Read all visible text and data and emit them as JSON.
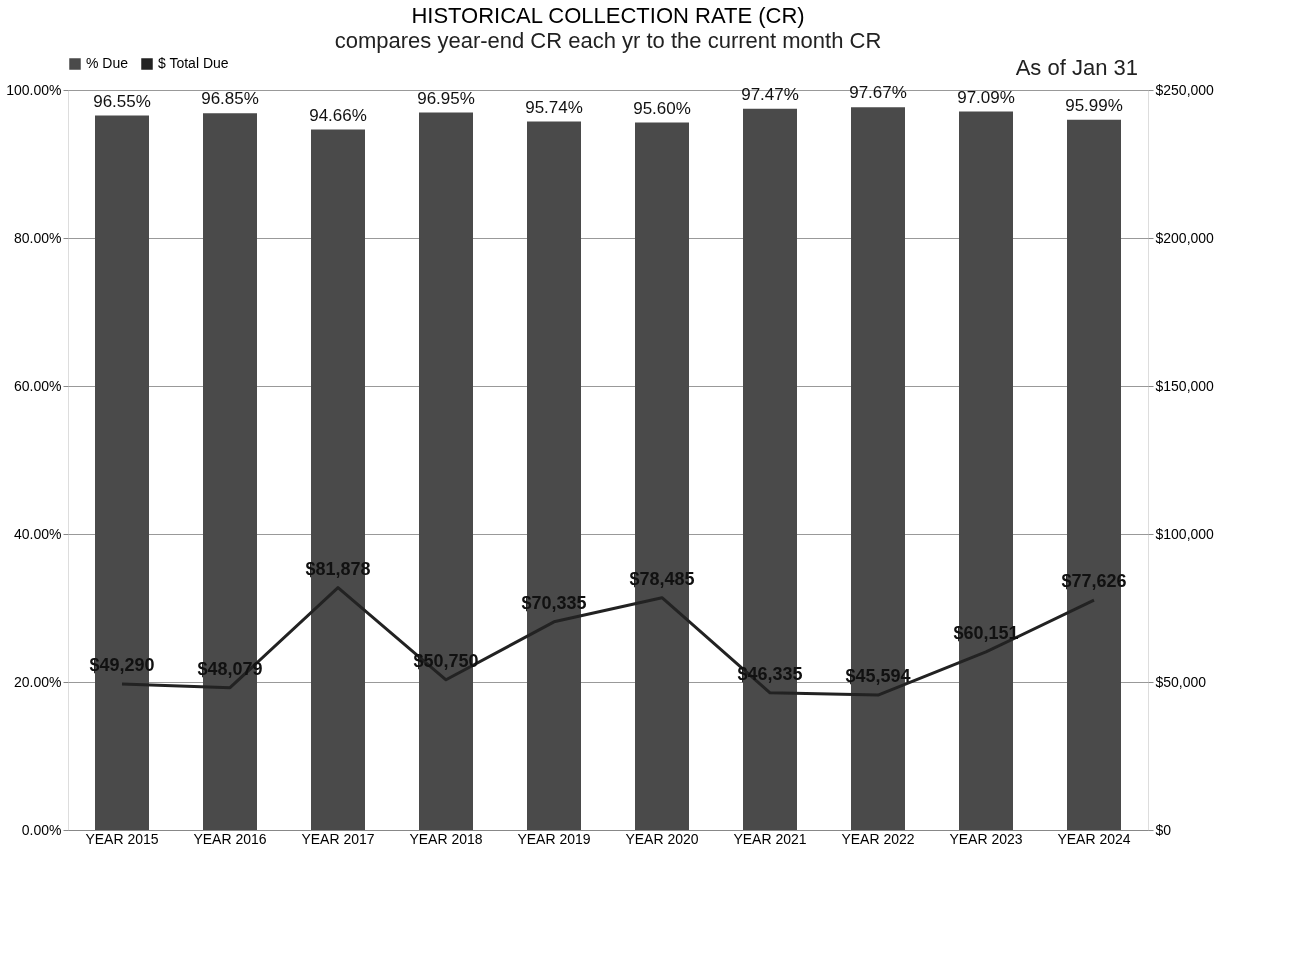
{
  "chart_data": {
    "type": "bar",
    "title": "HISTORICAL COLLECTION RATE (CR)",
    "subtitle": "compares year-end CR each yr to the current month CR",
    "categories": [
      "YEAR 2015",
      "YEAR 2016",
      "YEAR 2017",
      "YEAR 2018",
      "YEAR 2019",
      "YEAR 2020",
      "YEAR 2021",
      "YEAR 2022",
      "YEAR 2023",
      "YEAR 2024"
    ],
    "series": [
      {
        "name": "% Due",
        "color": "#4a4a4a",
        "values": [
          96.55,
          96.85,
          94.66,
          96.95,
          95.74,
          95.6,
          97.47,
          97.67,
          97.09,
          95.99
        ],
        "value_labels": [
          "96.55%",
          "96.85%",
          "94.66%",
          "96.95%",
          "95.74%",
          "95.60%",
          "97.47%",
          "97.67%",
          "97.09%",
          "95.99%"
        ]
      },
      {
        "name": "$ Total Due",
        "type": "line",
        "axis": "y2",
        "color": "#222222",
        "values": [
          49290,
          48079,
          81878,
          50750,
          70335,
          78485,
          46335,
          45594,
          60151,
          77626
        ],
        "value_labels": [
          "$49,290",
          "$48,079",
          "$81,878",
          "$50,750",
          "$70,335",
          "$78,485",
          "$46,335",
          "$45,594",
          "$60,151",
          "$77,626"
        ]
      }
    ],
    "ylim": [
      0,
      100
    ],
    "yticks": [
      {
        "value": 0,
        "label": "0.00%"
      },
      {
        "value": 20,
        "label": "20.00%"
      },
      {
        "value": 40,
        "label": "40.00%"
      },
      {
        "value": 60,
        "label": "60.00%"
      },
      {
        "value": 80,
        "label": "80.00%"
      },
      {
        "value": 100,
        "label": "100.00%"
      }
    ],
    "y2lim": [
      0,
      250000
    ],
    "y2ticks": [
      {
        "value": 0,
        "label": "$0"
      },
      {
        "value": 50000,
        "label": "$50,000"
      },
      {
        "value": 100000,
        "label": "$100,000"
      },
      {
        "value": 150000,
        "label": "$150,000"
      },
      {
        "value": 200000,
        "label": "$200,000"
      },
      {
        "value": 250000,
        "label": "$250,000"
      }
    ],
    "annotations": [
      "As of Jan 31"
    ],
    "legend": "top",
    "grid": "y"
  }
}
